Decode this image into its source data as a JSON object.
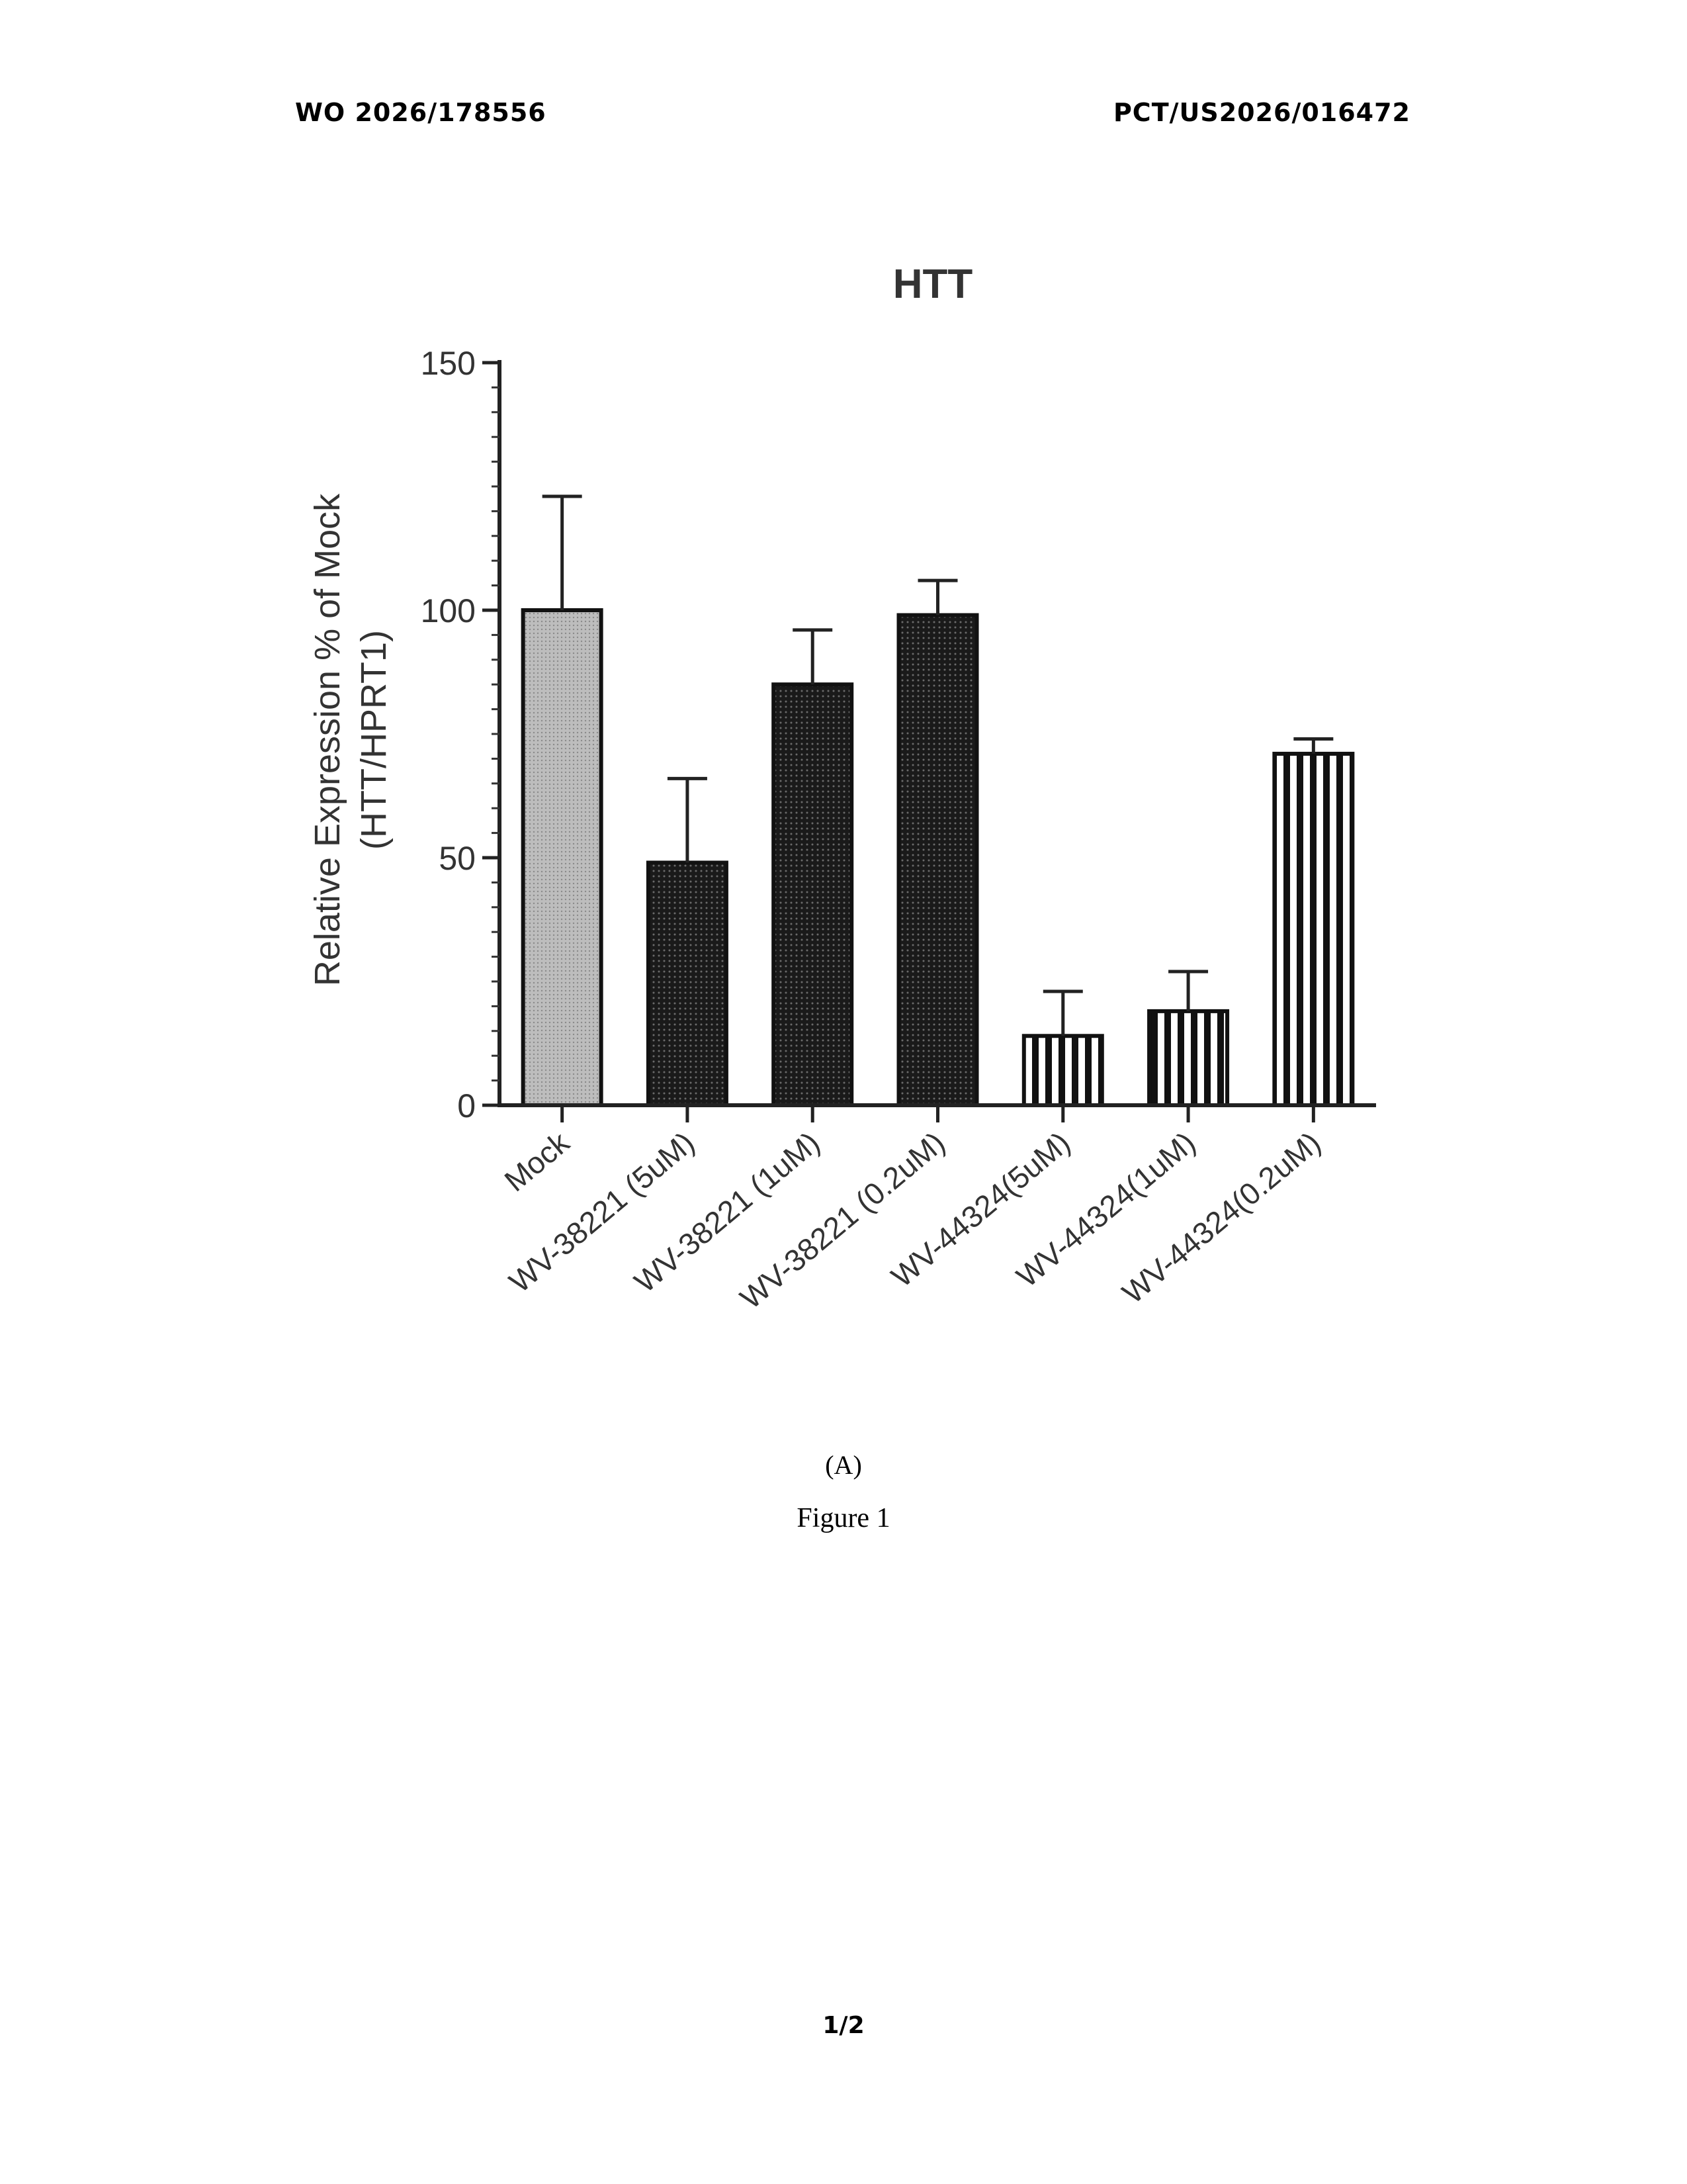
{
  "header": {
    "publication_number": "WO 2026/178556",
    "application_number": "PCT/US2026/016472"
  },
  "chart_data": {
    "type": "bar",
    "title": "HTT",
    "ylabel_line1": "Relative Expression % of Mock",
    "ylabel_line2": "(HTT/HPRT1)",
    "xlabel": "",
    "categories": [
      "Mock",
      "WV-38221 (5uM)",
      "WV-38221 (1uM)",
      "WV-38221 (0.2uM)",
      "WV-44324(5uM)",
      "WV-44324(1uM)",
      "WV-44324(0.2uM)"
    ],
    "values": [
      100,
      49,
      85,
      99,
      14,
      19,
      71
    ],
    "error_upper": [
      23,
      17,
      11,
      7,
      9,
      8,
      3
    ],
    "fill_patterns": [
      "light-gray",
      "dark-dotted",
      "dark-dotted",
      "dark-dotted",
      "vertical-stripes",
      "vertical-stripes",
      "vertical-stripes"
    ],
    "ylim": [
      0,
      150
    ],
    "yticks": [
      0,
      50,
      100,
      150
    ],
    "grid": false,
    "legend": "none"
  },
  "figure": {
    "panel_label": "(A)",
    "caption": "Figure 1"
  },
  "footer": {
    "page_number": "1/2"
  }
}
